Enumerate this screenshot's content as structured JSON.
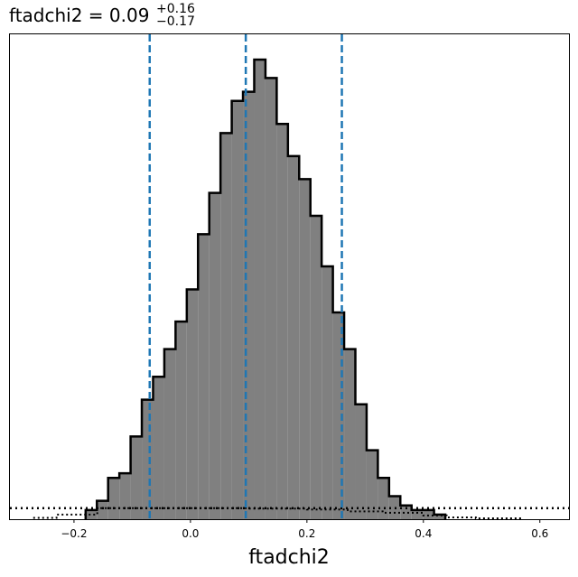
{
  "chart_data": {
    "type": "bar",
    "title": {
      "text": "ftadchi2 = 0.09",
      "sup": "+0.16",
      "sub": "−0.17"
    },
    "xlabel": "ftadchi2",
    "ylabel": "",
    "xlim": [
      -0.31,
      0.65
    ],
    "ylim": [
      0,
      1.055
    ],
    "xticks": [
      {
        "value": -0.2,
        "label": "−0.2"
      },
      {
        "value": 0.0,
        "label": "0.0"
      },
      {
        "value": 0.2,
        "label": "0.2"
      },
      {
        "value": 0.4,
        "label": "0.4"
      },
      {
        "value": 0.6,
        "label": "0.6"
      }
    ],
    "grid": false,
    "histogram": {
      "bin_start": -0.18,
      "bin_width": 0.0193,
      "counts": [
        0.02,
        0.04,
        0.09,
        0.1,
        0.18,
        0.26,
        0.31,
        0.37,
        0.43,
        0.5,
        0.62,
        0.71,
        0.84,
        0.91,
        0.93,
        1.0,
        0.96,
        0.86,
        0.79,
        0.74,
        0.66,
        0.55,
        0.45,
        0.37,
        0.25,
        0.15,
        0.09,
        0.05,
        0.03,
        0.02,
        0.02,
        0.01
      ],
      "fill_color": "#808080",
      "edge_color": "#000000"
    },
    "dotted_histogram": {
      "bins": [
        -0.27,
        -0.23,
        -0.16,
        0.1,
        0.2,
        0.27,
        0.33,
        0.4,
        0.44,
        0.49,
        0.57
      ],
      "counts": [
        0.003,
        0.01,
        0.024,
        0.023,
        0.021,
        0.017,
        0.014,
        0.008,
        0.004,
        0.002
      ],
      "color": "#000000"
    },
    "dotted_hline": {
      "y": 0.024,
      "color": "#000000"
    },
    "vlines": [
      {
        "x": -0.07,
        "color": "#1f77b4"
      },
      {
        "x": 0.095,
        "color": "#1f77b4"
      },
      {
        "x": 0.26,
        "color": "#1f77b4"
      }
    ]
  }
}
